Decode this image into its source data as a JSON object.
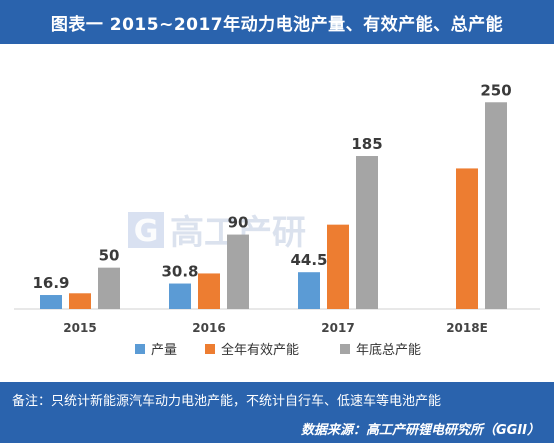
{
  "title": "图表一 2015~2017年动力电池产量、有效产能、总产能",
  "watermark": "高工产研",
  "watermark_logo_letter": "G",
  "footer": {
    "note": "备注：只统计新能源汽车动力电池产能，不统计自行车、低速车等电池产能",
    "source": "数据来源：高工产研锂电研究所（GGII）"
  },
  "colors": {
    "header_bg": "#2a63ad",
    "series": [
      "#5b9bd5",
      "#ed7d31",
      "#a5a5a5"
    ]
  },
  "chart_data": {
    "type": "bar",
    "categories": [
      "2015",
      "2016",
      "2017",
      "2018E"
    ],
    "series": [
      {
        "name": "产量",
        "values": [
          16.9,
          30.8,
          44.5,
          null
        ]
      },
      {
        "name": "全年有效产能",
        "values": [
          19,
          43,
          102,
          170
        ]
      },
      {
        "name": "年底总产能",
        "values": [
          50,
          90,
          185,
          250
        ]
      }
    ],
    "data_labels": [
      {
        "category": "2015",
        "text": "16.9",
        "series": 0
      },
      {
        "category": "2015",
        "text": "50",
        "series": 2
      },
      {
        "category": "2016",
        "text": "30.8",
        "series": 0
      },
      {
        "category": "2016",
        "text": "90",
        "series": 2
      },
      {
        "category": "2017",
        "text": "44.5",
        "series": 0
      },
      {
        "category": "2017",
        "text": "185",
        "series": 2
      },
      {
        "category": "2018E",
        "text": "250",
        "series": 2
      }
    ],
    "ylim": [
      0,
      260
    ],
    "grid": false,
    "legend_position": "bottom"
  }
}
